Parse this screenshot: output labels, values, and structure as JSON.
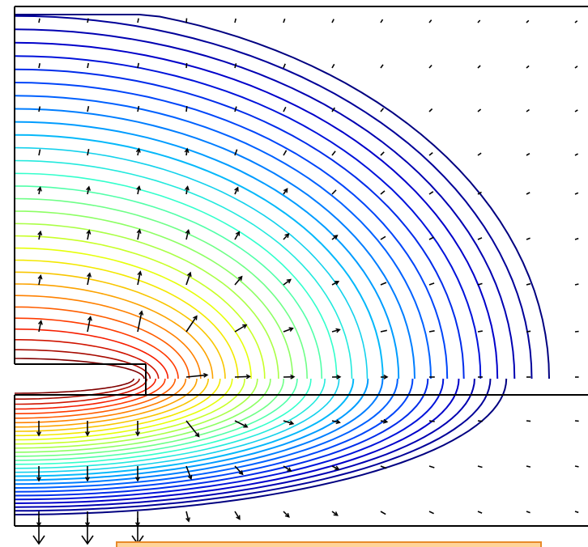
{
  "figure": {
    "colormap": [
      "#000080",
      "#0000d0",
      "#0050ff",
      "#00b0ff",
      "#30ffd0",
      "#90ff60",
      "#f0ff00",
      "#ff9000",
      "#ff2000",
      "#800000"
    ],
    "background": "#ffffff",
    "boundary_color": "#000000",
    "arrow_color": "#000000",
    "strip_color": "#ffd39a",
    "strip_border": "#e88a2a"
  }
}
